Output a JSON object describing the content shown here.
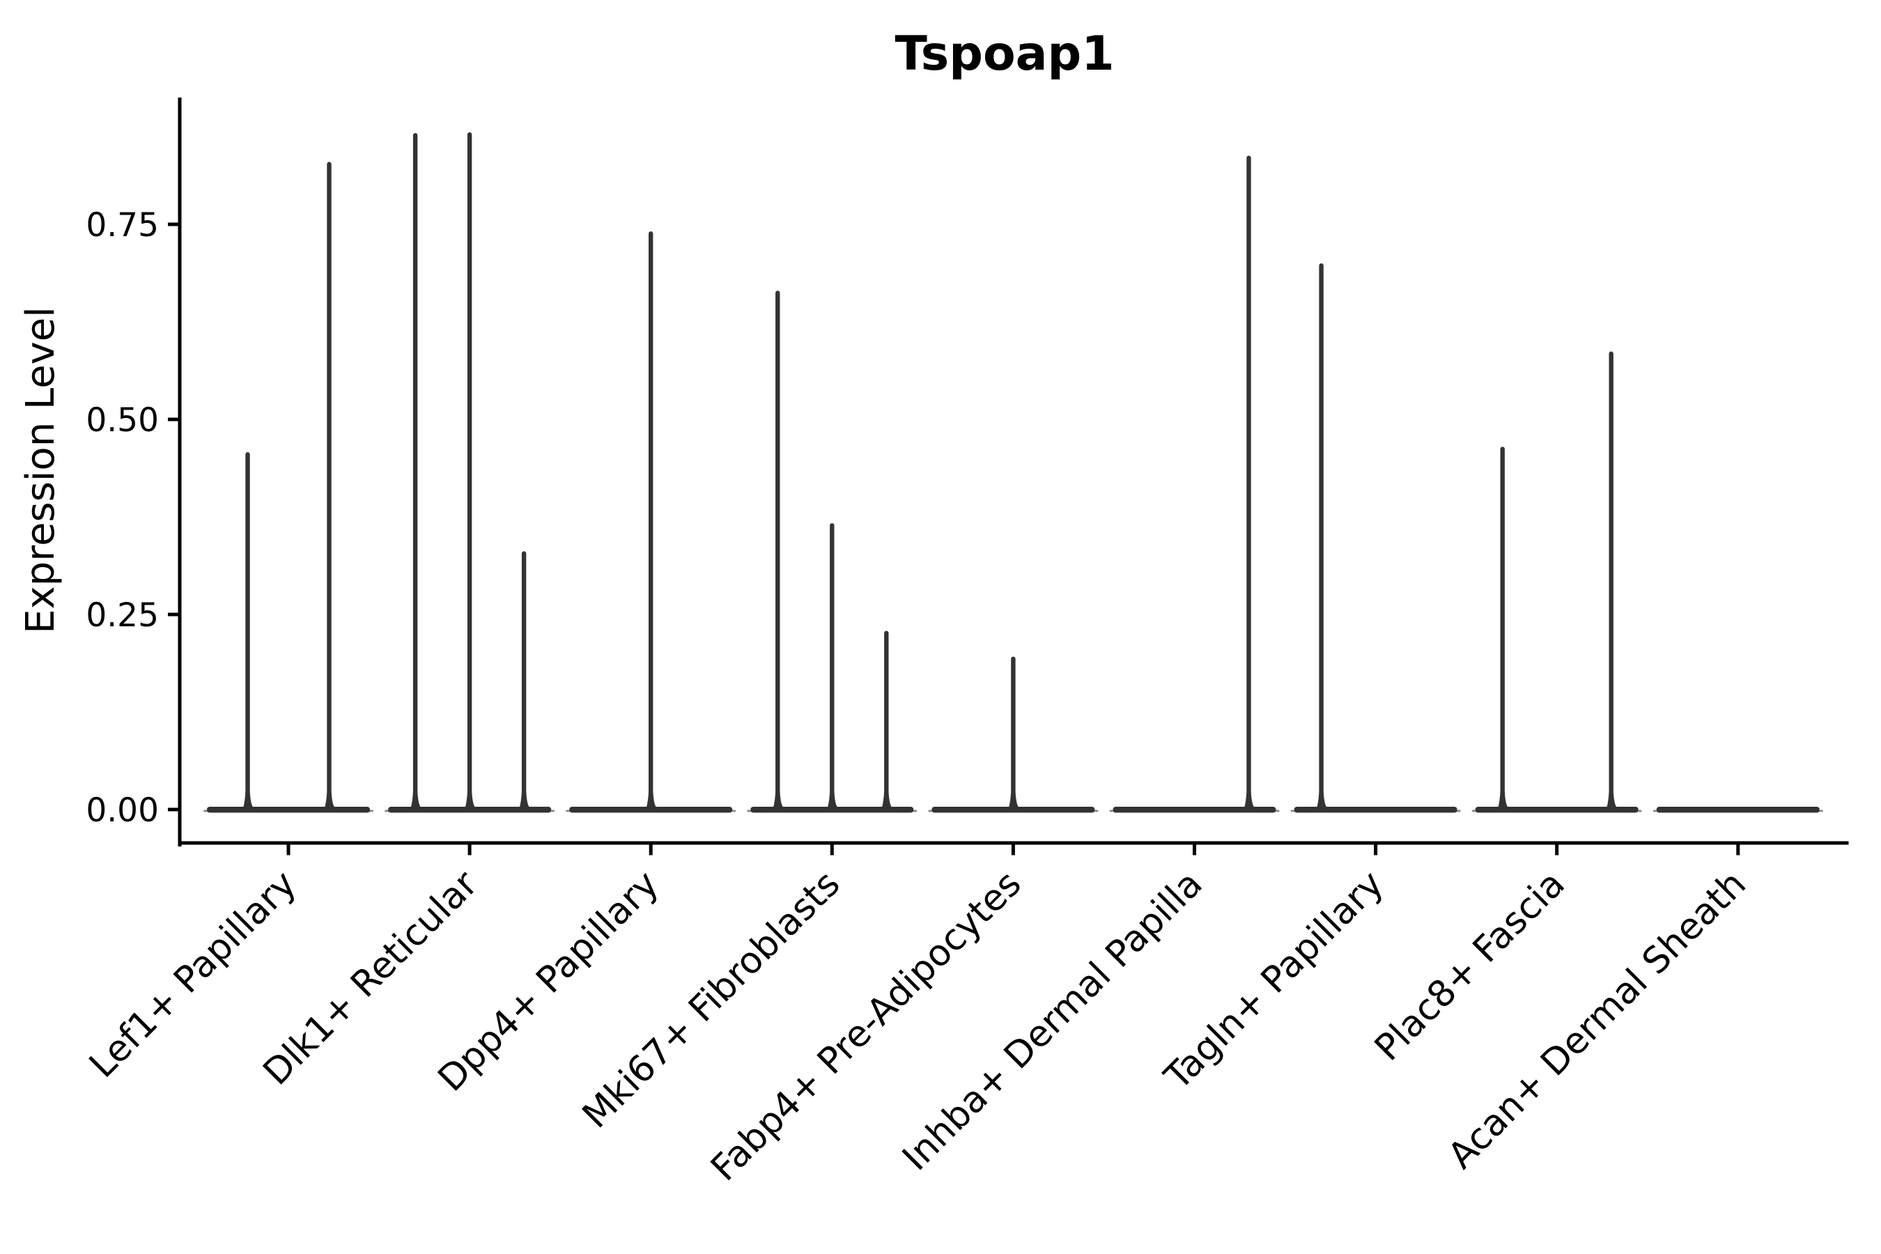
{
  "chart_data": {
    "type": "violin",
    "title": "Tspoap1",
    "xlabel": "",
    "ylabel": "Expression Level",
    "ylim": [
      0,
      0.91
    ],
    "y_ticks": [
      0.0,
      0.25,
      0.5,
      0.75
    ],
    "y_tick_labels": [
      "0.00",
      "0.25",
      "0.50",
      "0.75"
    ],
    "grid": false,
    "legend_position": "none",
    "x_tick_label_rotation_deg": 45,
    "categories": [
      "Lef1+ Papillary",
      "Dlk1+ Reticular",
      "Dpp4+ Papillary",
      "Mki67+ Fibroblasts",
      "Fabp4+ Pre-Adipocytes",
      "Inhba+ Dermal Papilla",
      "Tagln+ Papillary",
      "Plac8+ Fascia",
      "Acan+ Dermal Sheath"
    ],
    "groups": [
      {
        "category": "Lef1+ Papillary",
        "violin_max_expression": [
          0.458,
          0.83
        ]
      },
      {
        "category": "Dlk1+ Reticular",
        "violin_max_expression": [
          0.867,
          0.868,
          0.331
        ]
      },
      {
        "category": "Dpp4+ Papillary",
        "violin_max_expression": [
          0.741
        ]
      },
      {
        "category": "Mki67+ Fibroblasts",
        "violin_max_expression": [
          0.665,
          0.367,
          0.229
        ]
      },
      {
        "category": "Fabp4+ Pre-Adipocytes",
        "violin_max_expression": [
          0.196
        ]
      },
      {
        "category": "Inhba+ Dermal Papilla",
        "violin_max_expression": [
          0.0,
          0.0,
          0.838
        ]
      },
      {
        "category": "Tagln+ Papillary",
        "violin_max_expression": [
          0.7,
          0.0,
          0.0
        ]
      },
      {
        "category": "Plac8+ Fascia",
        "violin_max_expression": [
          0.465,
          0.0,
          0.587
        ]
      },
      {
        "category": "Acan+ Dermal Sheath",
        "violin_max_expression": [
          0.0
        ]
      }
    ],
    "colors": {
      "violin_fill": "#333333",
      "violin_tip": "#8c8c8c",
      "axis": "#000000",
      "text": "#000000",
      "background": "#ffffff"
    }
  }
}
